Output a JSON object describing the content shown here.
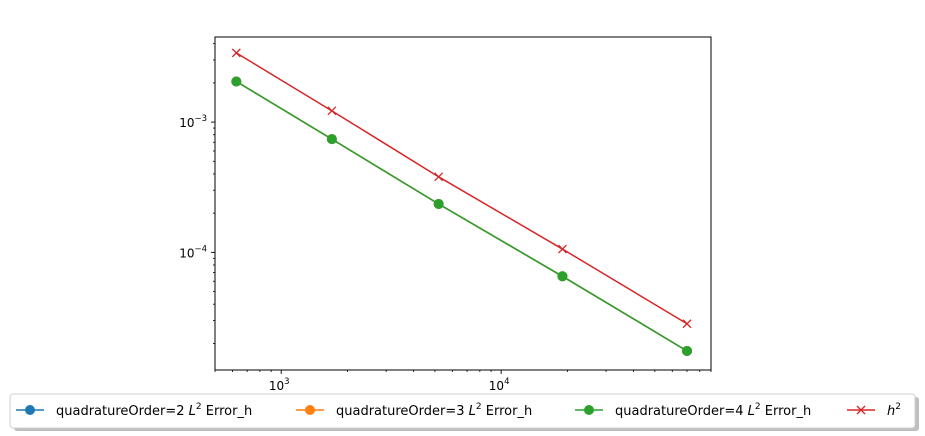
{
  "chart_data": {
    "type": "line",
    "xscale": "log",
    "yscale": "log",
    "xlim": [
      500,
      90000
    ],
    "ylim": [
      1.25e-05,
      0.0045
    ],
    "x_ticks": [
      {
        "value": 1000,
        "base": "10",
        "exp": "3"
      },
      {
        "value": 10000,
        "base": "10",
        "exp": "4"
      }
    ],
    "y_ticks": [
      {
        "value": 0.001,
        "base": "10",
        "exp": "−3"
      },
      {
        "value": 0.0001,
        "base": "10",
        "exp": "−4"
      }
    ],
    "x": [
      625,
      1700,
      5200,
      19000,
      70000
    ],
    "series": [
      {
        "label": "quadratureOrder=2",
        "sup": "2",
        "label_pre": "L",
        "label_post": " Error_h",
        "color": "#1f77b4",
        "marker": "circle",
        "values": [
          0.00205,
          0.00074,
          0.000235,
          6.55e-05,
          1.75e-05
        ]
      },
      {
        "label": "quadratureOrder=3",
        "sup": "2",
        "label_pre": "L",
        "label_post": " Error_h",
        "color": "#ff7f0e",
        "marker": "circle",
        "values": [
          0.00205,
          0.00074,
          0.000235,
          6.55e-05,
          1.75e-05
        ]
      },
      {
        "label": "quadratureOrder=4",
        "sup": "2",
        "label_pre": "L",
        "label_post": " Error_h",
        "color": "#2ca02c",
        "marker": "circle",
        "values": [
          0.00205,
          0.00074,
          0.000235,
          6.55e-05,
          1.75e-05
        ]
      },
      {
        "label": "",
        "sup": "2",
        "label_pre": "h",
        "label_post": "",
        "color": "#d62728",
        "marker": "x",
        "values": [
          0.0034,
          0.00122,
          0.00038,
          0.000106,
          2.83e-05
        ]
      }
    ],
    "legend_position": "bottom"
  }
}
